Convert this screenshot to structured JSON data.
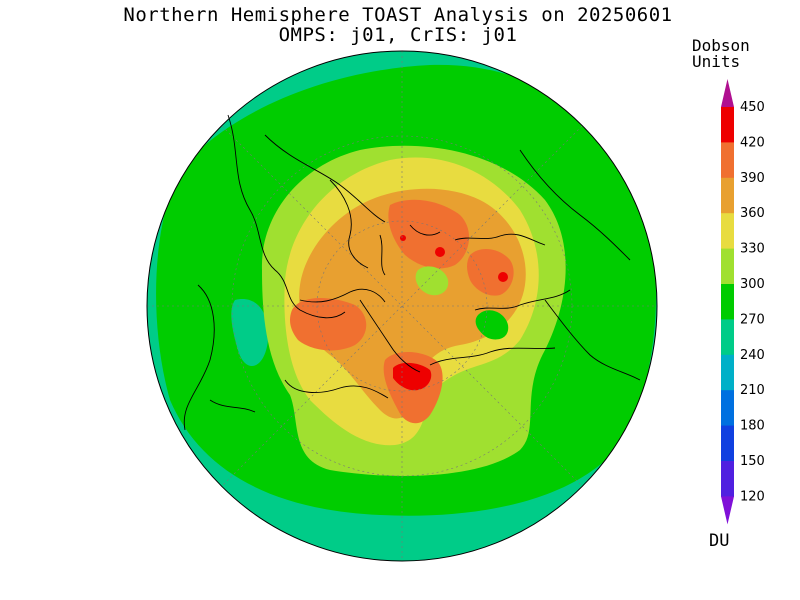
{
  "title": {
    "line1": "Northern Hemisphere TOAST Analysis on 20250601",
    "line2": "OMPS: j01, CrIS: j01"
  },
  "colorbar": {
    "title_line1": "Dobson",
    "title_line2": "Units",
    "unit": "DU",
    "ticks": [
      "450",
      "420",
      "390",
      "360",
      "330",
      "300",
      "270",
      "240",
      "210",
      "180",
      "150",
      "120"
    ],
    "bands_top_to_bottom": [
      "#b01090",
      "#ee0000",
      "#f07030",
      "#e8a030",
      "#e8dc40",
      "#a0e030",
      "#00cc00",
      "#00cc88",
      "#00b0c8",
      "#0070e0",
      "#1040e0",
      "#5020e0",
      "#8010d8"
    ]
  },
  "map": {
    "projection": "north-polar-stereographic",
    "colors": {
      "outer_240_270": "#00cc88",
      "ring_270_300": "#00cc00",
      "band_300_330": "#a0e030",
      "band_330_360": "#e8dc40",
      "band_360_390": "#e8a030",
      "band_390_420": "#f07030",
      "band_420_450": "#ee0000"
    }
  }
}
